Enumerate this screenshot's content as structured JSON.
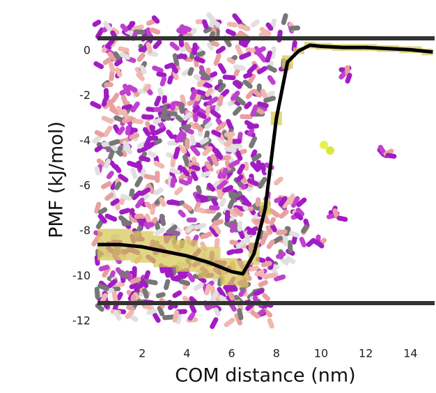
{
  "chart_data": {
    "type": "line",
    "x_label": "COM distance (nm)",
    "y_label": "PMF (kJ/mol)",
    "x": [
      0,
      1,
      2,
      3,
      4,
      5,
      6,
      6.5,
      7,
      7.5,
      8,
      8.5,
      9,
      9.5,
      10,
      11,
      12,
      13,
      14,
      15
    ],
    "series": [
      {
        "color": "#000000",
        "band_color": "#d8c85a",
        "values": [
          -8.6,
          -8.6,
          -8.7,
          -8.9,
          -9.1,
          -9.4,
          -9.8,
          -9.9,
          -9.0,
          -7.0,
          -3.0,
          -0.5,
          0.0,
          0.25,
          0.2,
          0.15,
          0.15,
          0.1,
          0.05,
          -0.05
        ],
        "error": [
          0.7,
          0.7,
          0.7,
          0.7,
          0.7,
          0.7,
          0.6,
          0.6,
          0.5,
          0.3,
          0.3,
          0.3,
          0.15,
          0.15,
          0.15,
          0.15,
          0.15,
          0.15,
          0.15,
          0.15
        ]
      }
    ],
    "xlim": [
      0,
      15
    ],
    "ylim": [
      -12.3,
      0.8
    ],
    "xticks": [
      2,
      4,
      6,
      8,
      10,
      12,
      14
    ],
    "yticks": [
      0,
      -2,
      -4,
      -6,
      -8,
      -10,
      -12
    ]
  }
}
